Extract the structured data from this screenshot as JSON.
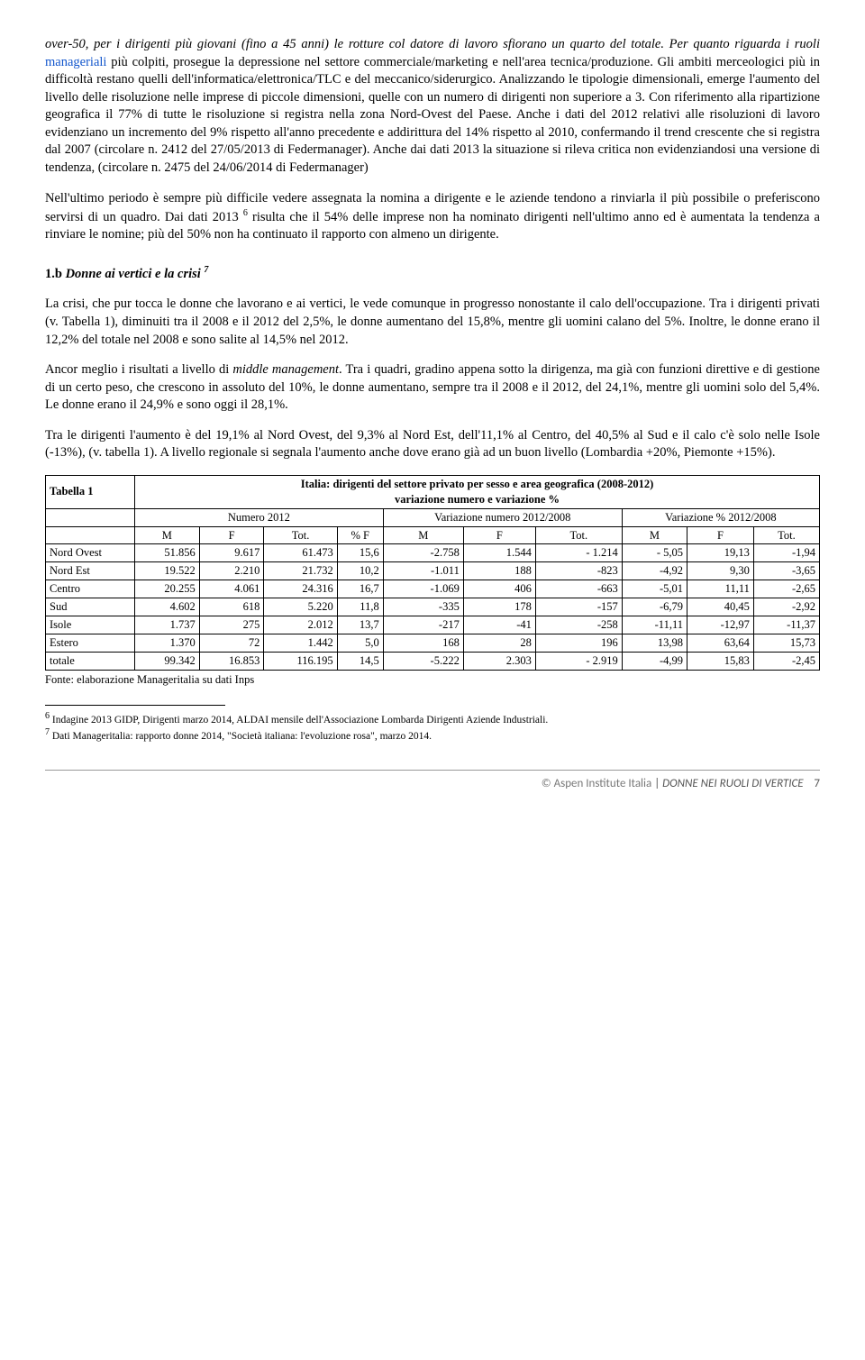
{
  "para1_a": "over-50, per i dirigenti più giovani (fino a 45 anni) le rotture col datore di lavoro sfiorano un quarto del totale. Per quanto  riguarda i ruoli ",
  "para1_link": "manageriali",
  "para1_b": " più colpiti, prosegue la depressione nel settore commerciale/marketing e nell'area tecnica/produzione. Gli ambiti merceologici più in difficoltà restano quelli dell'informatica/elettronica/TLC e del meccanico/siderurgico. Analizzando le tipologie dimensionali, emerge l'aumento del livello delle risoluzione nelle imprese di piccole dimensioni, quelle con un numero di dirigenti non superiore a 3. Con riferimento alla ripartizione geografica il 77% di tutte le risoluzione si registra nella zona Nord-Ovest del Paese. Anche i dati del 2012 relativi alle risoluzioni di lavoro evidenziano un incremento del 9% rispetto all'anno precedente e addirittura del 14% rispetto al 2010, confermando il trend crescente che si registra dal 2007 (circolare n. 2412 del 27/05/2013 di Federmanager). Anche dai dati 2013 la situazione si rileva critica non evidenziandosi una versione di tendenza, (circolare n. 2475 del 24/06/2014 di Federmanager)",
  "para2": "Nell'ultimo periodo è sempre  più difficile vedere assegnata la nomina a dirigente e le aziende tendono a rinviarla il più possibile o preferiscono servirsi di un quadro. Dai dati 2013 ",
  "para2_sup": "6",
  "para2_b": " risulta che il 54% delle imprese non ha nominato dirigenti nell'ultimo anno ed è aumentata la tendenza a rinviare le nomine; più del 50% non ha continuato il rapporto con almeno un dirigente.",
  "sec_title_a": "1.b ",
  "sec_title_b": "Donne ai vertici e la crisi ",
  "sec_title_sup": "7",
  "para3": "La crisi, che pur tocca le donne che lavorano e ai vertici, le vede comunque in progresso nonostante il calo dell'occupazione. Tra i dirigenti privati (v. Tabella 1), diminuiti tra il 2008 e il 2012 del 2,5%, le donne aumentano del 15,8%, mentre gli uomini calano del 5%. Inoltre, le donne erano il 12,2% del totale nel 2008 e sono salite al 14,5% nel 2012.",
  "para4_a": "Ancor meglio i risultati a livello di ",
  "para4_it": "middle management",
  "para4_b": ". Tra i quadri, gradino appena sotto la dirigenza, ma già con funzioni direttive e di gestione di un certo peso, che crescono in assoluto del 10%, le donne aumentano, sempre tra il 2008 e il 2012, del 24,1%, mentre gli uomini solo del 5,4%. Le donne erano il 24,9% e sono oggi il 28,1%.",
  "para5": "Tra le dirigenti l'aumento è del 19,1% al Nord Ovest, del 9,3% al Nord Est, dell'11,1% al Centro, del 40,5% al Sud e il calo c'è solo nelle Isole (-13%), (v. tabella 1). A livello regionale si segnala l'aumento anche dove erano già ad un buon livello (Lombardia +20%, Piemonte +15%).",
  "table": {
    "label": "Tabella 1",
    "title": "Italia: dirigenti del settore privato per sesso e area geografica (2008-2012)",
    "subtitle": "variazione numero e variazione %",
    "group_headers": [
      "",
      "Numero 2012",
      "Variazione numero 2012/2008",
      "Variazione % 2012/2008"
    ],
    "cols": [
      "",
      "M",
      "F",
      "Tot.",
      "% F",
      "M",
      "F",
      "Tot.",
      "M",
      "F",
      "Tot."
    ],
    "rows": [
      [
        "Nord Ovest",
        "51.856",
        "9.617",
        "61.473",
        "15,6",
        "-2.758",
        "1.544",
        "- 1.214",
        "- 5,05",
        "19,13",
        "-1,94"
      ],
      [
        "Nord Est",
        "19.522",
        "2.210",
        "21.732",
        "10,2",
        "-1.011",
        "188",
        "-823",
        "-4,92",
        "9,30",
        "-3,65"
      ],
      [
        "Centro",
        "20.255",
        "4.061",
        "24.316",
        "16,7",
        "-1.069",
        "406",
        "-663",
        "-5,01",
        "11,11",
        "-2,65"
      ],
      [
        "Sud",
        "4.602",
        "618",
        "5.220",
        "11,8",
        "-335",
        "178",
        "-157",
        "-6,79",
        "40,45",
        "-2,92"
      ],
      [
        "Isole",
        "1.737",
        "275",
        "2.012",
        "13,7",
        "-217",
        "-41",
        "-258",
        "-11,11",
        "-12,97",
        "-11,37"
      ],
      [
        "Estero",
        "1.370",
        "72",
        "1.442",
        "5,0",
        "168",
        "28",
        "196",
        "13,98",
        "63,64",
        "15,73"
      ],
      [
        "totale",
        "99.342",
        "16.853",
        "116.195",
        "14,5",
        "-5.222",
        "2.303",
        "- 2.919",
        "-4,99",
        "15,83",
        "-2,45"
      ]
    ],
    "source": "Fonte: elaborazione Manageritalia su dati Inps"
  },
  "footnotes": {
    "f6_sup": "6",
    "f6": " Indagine 2013 GIDP, Dirigenti marzo 2014, ALDAI mensile dell'Associazione Lombarda Dirigenti Aziende Industriali.",
    "f7_sup": "7",
    "f7": " Dati Manageritalia: rapporto donne 2014, \"Società italiana: l'evoluzione rosa\", marzo 2014."
  },
  "footer": {
    "copy": "© Aspen Institute Italia ",
    "sep": " | ",
    "title": "DONNE NEI RUOLI DI VERTICE",
    "page": "7"
  }
}
